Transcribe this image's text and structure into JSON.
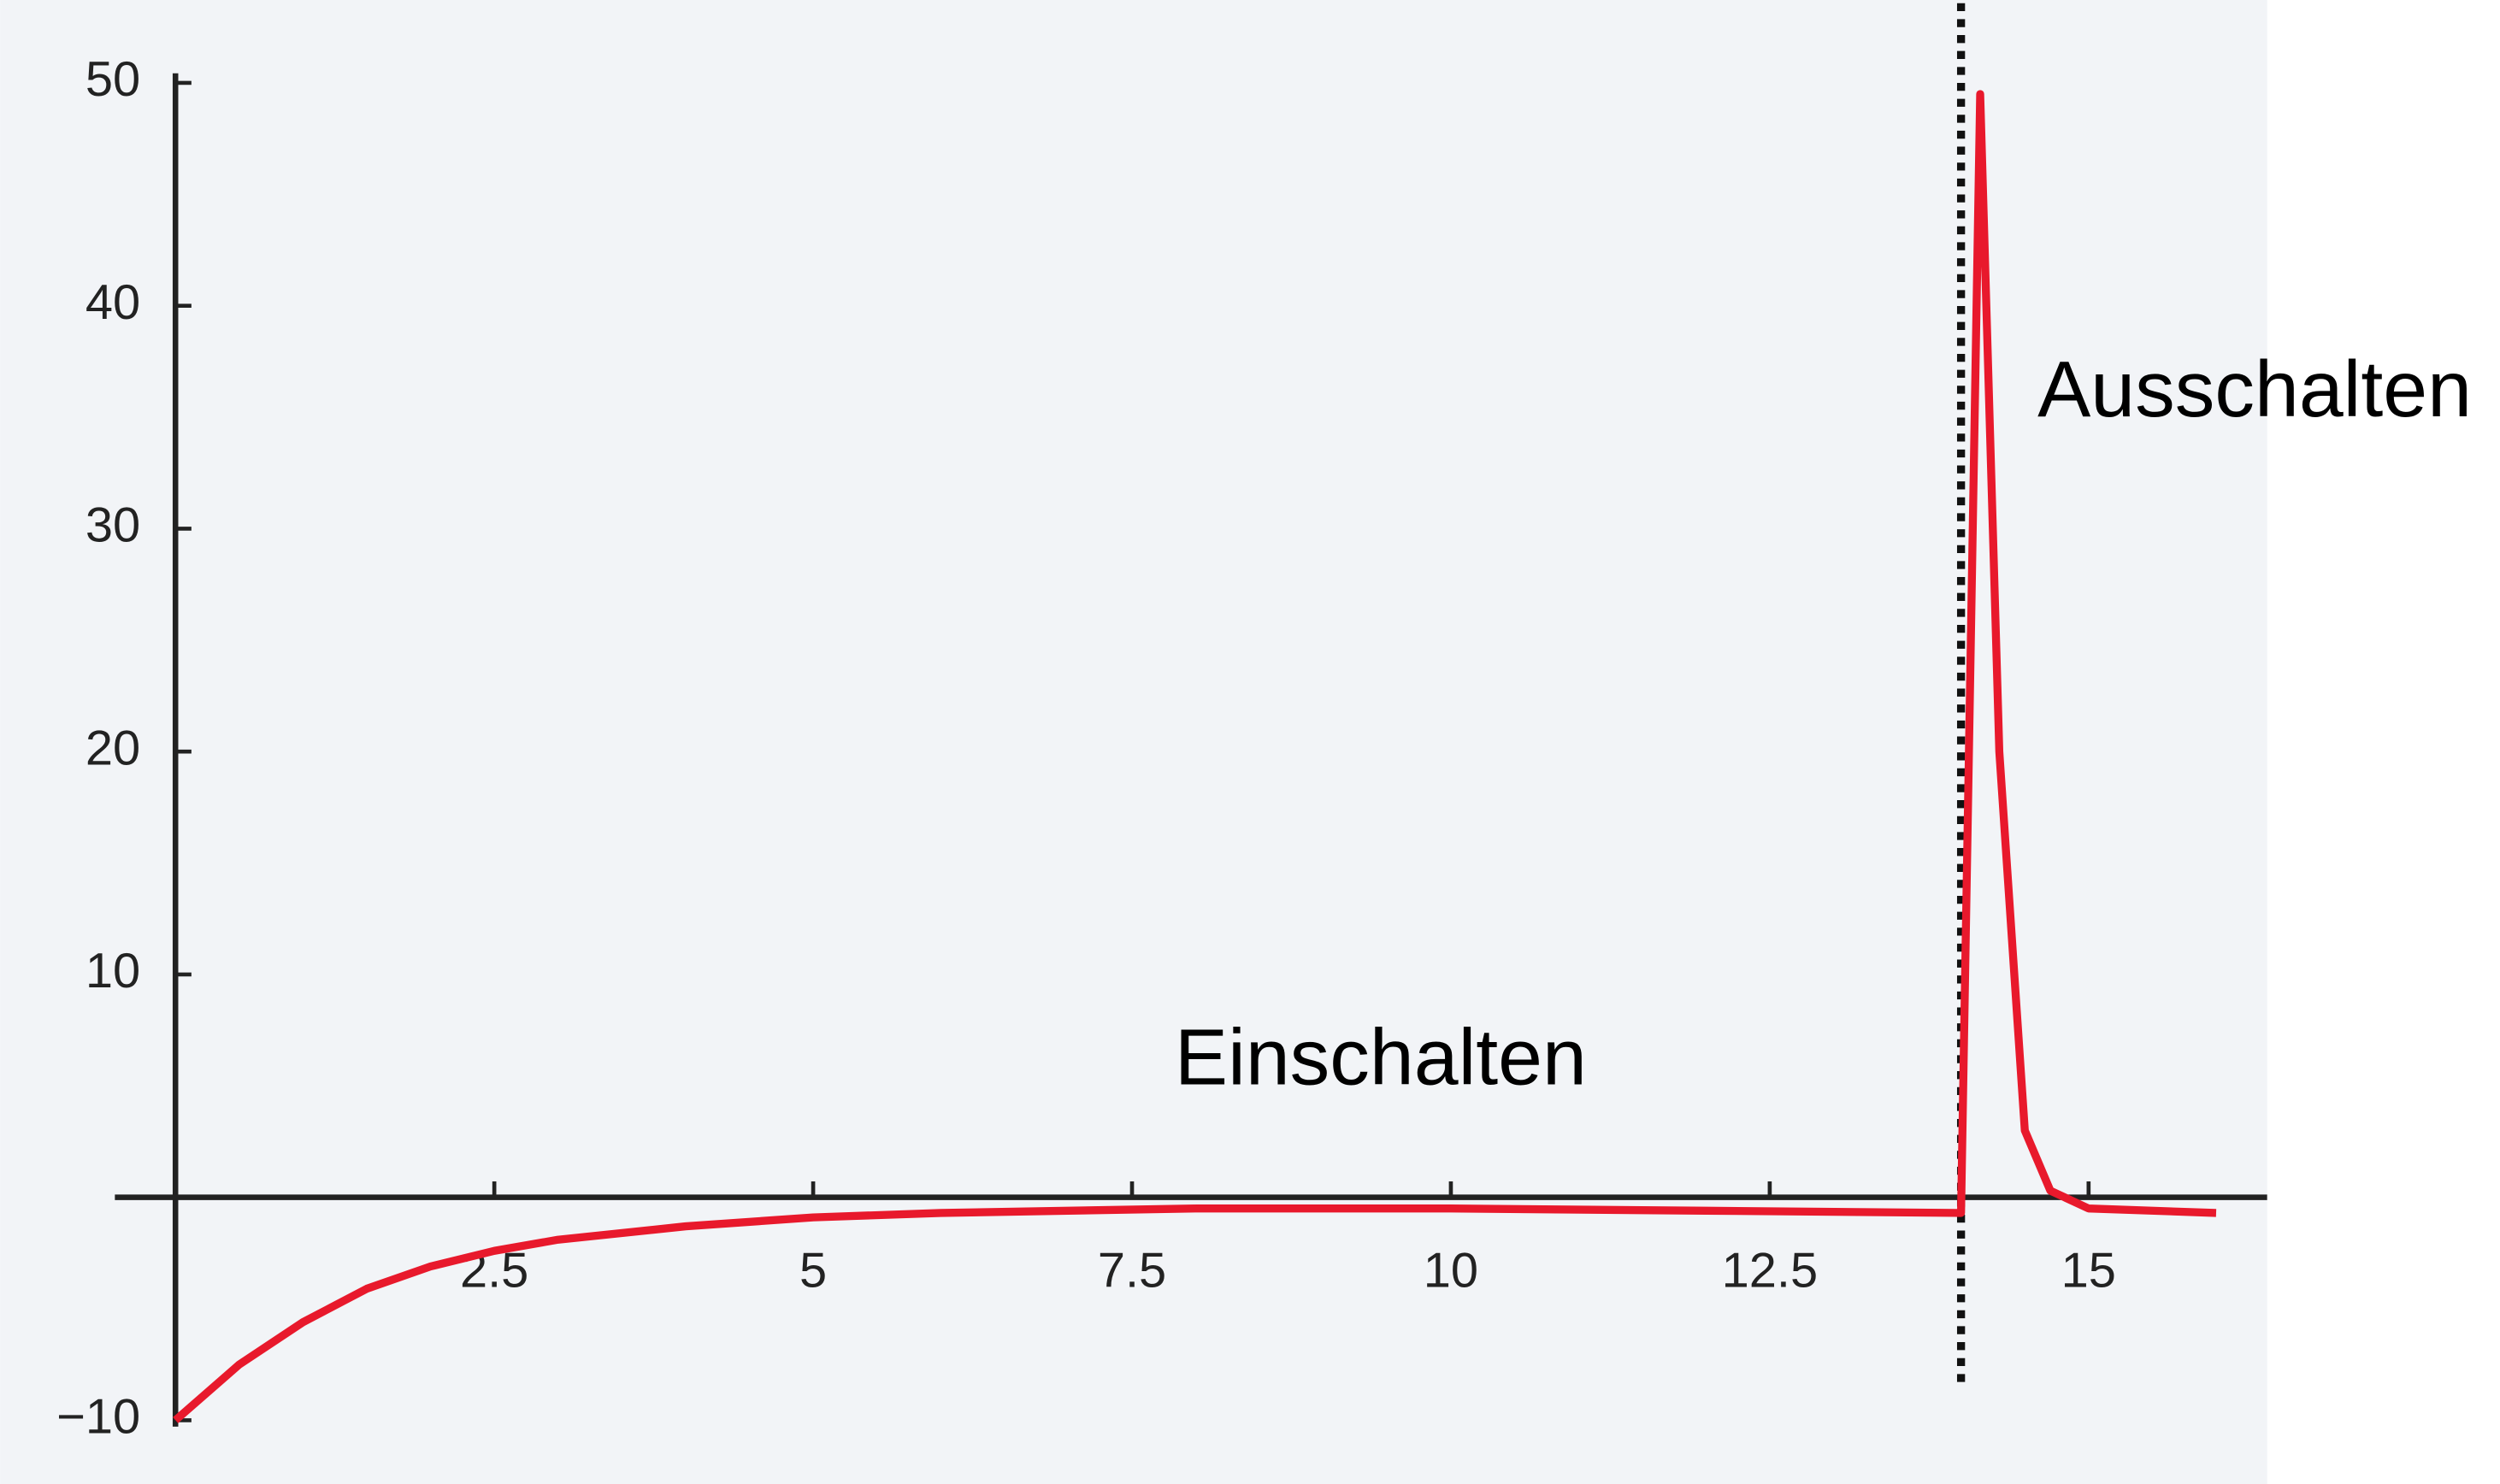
{
  "chart_data": {
    "type": "line",
    "annotations": [
      "Einschalten",
      "Ausschalten"
    ],
    "x": [
      0,
      0.5,
      1,
      1.5,
      2,
      2.5,
      3,
      4,
      5,
      6,
      8,
      10,
      12,
      14,
      14.15,
      14.3,
      14.5,
      14.7,
      15,
      16
    ],
    "values": [
      -10,
      -7.5,
      -5.6,
      -4.1,
      -3.1,
      -2.4,
      -1.9,
      -1.3,
      -0.9,
      -0.7,
      -0.5,
      -0.5,
      -0.6,
      -0.7,
      49.5,
      20,
      3,
      0.3,
      -0.5,
      -0.7
    ],
    "color": "#e8192c",
    "vlines": [
      14
    ],
    "xlim": [
      0,
      16.4
    ],
    "ylim": [
      -10,
      50
    ],
    "xticks": [
      2.5,
      5,
      7.5,
      10,
      12.5,
      15
    ],
    "yticks": [
      {
        "value": -10,
        "label": "−10"
      },
      10,
      20,
      30,
      40,
      50
    ]
  }
}
